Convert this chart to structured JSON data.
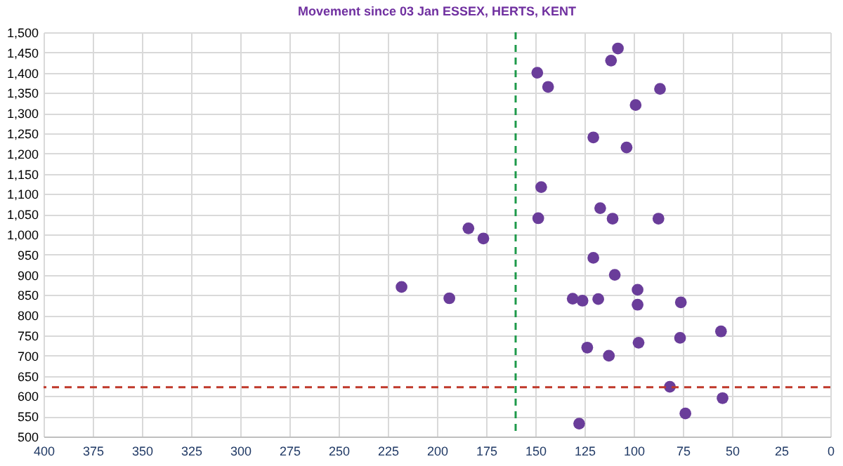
{
  "chart_data": {
    "type": "scatter",
    "title": "Movement since 03 Jan ESSEX, HERTS, KENT",
    "x": [
      108,
      111.5,
      149,
      143.5,
      86.6,
      99,
      120.5,
      103.6,
      147,
      117,
      148.5,
      110.7,
      87.4,
      184,
      176.4,
      218,
      193.7,
      120.5,
      109.6,
      98,
      131,
      126,
      118,
      98,
      76,
      55.6,
      76.4,
      97.5,
      123.6,
      112.6,
      81.6,
      54.8,
      73.7,
      127.7
    ],
    "series": [
      {
        "color": "#6a3d9a",
        "values": [
          1460,
          1430,
          1400,
          1365,
          1360,
          1320,
          1240,
          1215,
          1117,
          1065,
          1040,
          1039,
          1039,
          1015,
          990,
          870,
          842,
          942,
          900,
          863,
          841,
          836,
          840,
          826,
          832,
          760,
          744,
          732,
          720,
          700,
          623,
          595,
          557,
          532
        ]
      }
    ],
    "xlim": [
      400,
      0
    ],
    "xticks": [
      400,
      375,
      350,
      325,
      300,
      275,
      250,
      225,
      200,
      175,
      150,
      125,
      100,
      75,
      50,
      25,
      0
    ],
    "ylim": [
      500,
      1500
    ],
    "yticks": [
      {
        "value": 500,
        "label": "500"
      },
      {
        "value": 550,
        "label": "550"
      },
      {
        "value": 600,
        "label": "600"
      },
      {
        "value": 650,
        "label": "650"
      },
      {
        "value": 700,
        "label": "700"
      },
      {
        "value": 750,
        "label": "750"
      },
      {
        "value": 800,
        "label": "800"
      },
      {
        "value": 850,
        "label": "850"
      },
      {
        "value": 900,
        "label": "900"
      },
      {
        "value": 950,
        "label": "950"
      },
      {
        "value": 1000,
        "label": "1,000"
      },
      {
        "value": 1050,
        "label": "1,050"
      },
      {
        "value": 1100,
        "label": "1,100"
      },
      {
        "value": 1150,
        "label": "1,150"
      },
      {
        "value": 1200,
        "label": "1,200"
      },
      {
        "value": 1250,
        "label": "1,250"
      },
      {
        "value": 1300,
        "label": "1,300"
      },
      {
        "value": 1350,
        "label": "1,350"
      },
      {
        "value": 1400,
        "label": "1,400"
      },
      {
        "value": 1450,
        "label": "1,450"
      },
      {
        "value": 1500,
        "label": "1,500"
      }
    ],
    "ref_lines": [
      {
        "axis": "x",
        "value": 160,
        "color": "#1e9a4a",
        "line_style": "dashed"
      },
      {
        "axis": "y",
        "value": 622,
        "color": "#c0392b",
        "line_style": "dashed"
      }
    ],
    "grid": true,
    "marker": "circle"
  }
}
